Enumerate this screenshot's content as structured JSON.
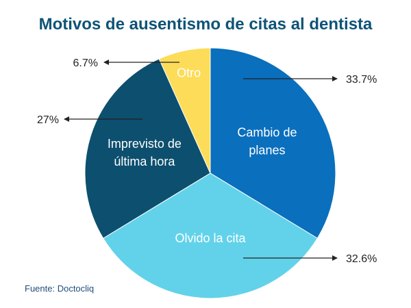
{
  "chart_data": {
    "type": "pie",
    "title": "Motivos de ausentismo de citas al dentista",
    "slices": [
      {
        "label": "Cambio de planes",
        "value": 33.7,
        "value_label": "33.7%",
        "color": "#0a6fbd",
        "label_color": "#ffffff"
      },
      {
        "label": "Olvido la cita",
        "value": 32.6,
        "value_label": "32.6%",
        "color": "#62d2ea",
        "label_color": "#ffffff"
      },
      {
        "label": "Imprevisto de última hora",
        "value": 27,
        "value_label": "27%",
        "color": "#0d4f6e",
        "label_color": "#ffffff"
      },
      {
        "label": "Otro",
        "value": 6.7,
        "value_label": "6.7%",
        "color": "#fddc59",
        "label_color": "#ffffff"
      }
    ]
  },
  "source": "Fuente: Doctocliq"
}
